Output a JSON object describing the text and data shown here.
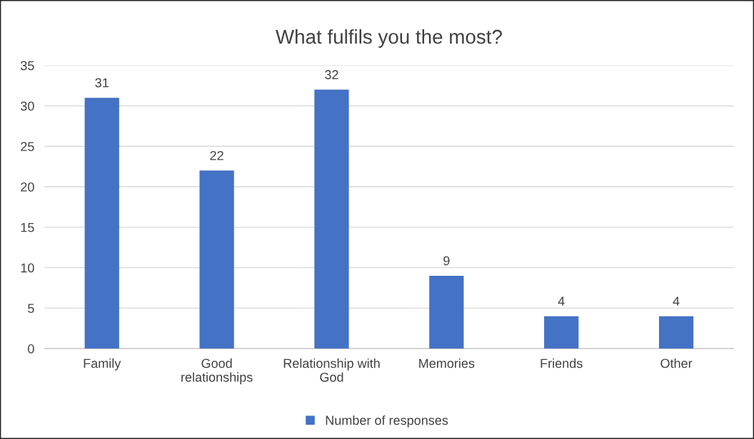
{
  "chart_data": {
    "type": "bar",
    "title": "What fulfils you the most?",
    "categories": [
      "Family",
      "Good\nrelationships",
      "Relationship with\nGod",
      "Memories",
      "Friends",
      "Other"
    ],
    "series": [
      {
        "name": "Number of responses",
        "color": "#4472c4",
        "values": [
          31,
          22,
          32,
          9,
          4,
          4
        ]
      }
    ],
    "ylim": [
      0,
      35
    ],
    "yticks": [
      0,
      5,
      10,
      15,
      20,
      25,
      30,
      35
    ],
    "grid": "y",
    "legend": "bottom",
    "data_labels": true
  }
}
